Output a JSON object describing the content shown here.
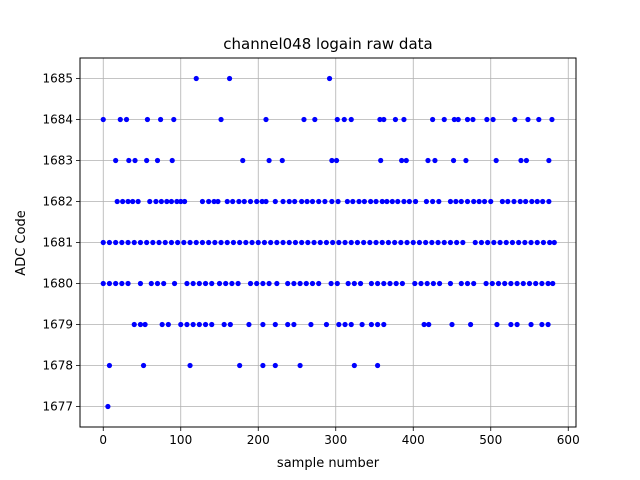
{
  "chart_data": {
    "type": "scatter",
    "title": "channel048 logain raw data",
    "xlabel": "sample number",
    "ylabel": "ADC Code",
    "xlim": [
      -30,
      610
    ],
    "ylim": [
      1676.5,
      1685.5
    ],
    "xticks": [
      0,
      100,
      200,
      300,
      400,
      500,
      600
    ],
    "yticks": [
      1677,
      1678,
      1679,
      1680,
      1681,
      1682,
      1683,
      1684,
      1685
    ],
    "grid": true,
    "marker_color": "#0000ff",
    "series": [
      {
        "points": [
          [
            0,
            1684
          ],
          [
            22,
            1684
          ],
          [
            30,
            1684
          ],
          [
            57,
            1684
          ],
          [
            74,
            1684
          ],
          [
            91,
            1684
          ],
          [
            152,
            1684
          ],
          [
            210,
            1684
          ],
          [
            259,
            1684
          ],
          [
            273,
            1684
          ],
          [
            302,
            1684
          ],
          [
            311,
            1684
          ],
          [
            320,
            1684
          ],
          [
            357,
            1684
          ],
          [
            362,
            1684
          ],
          [
            377,
            1684
          ],
          [
            388,
            1684
          ],
          [
            425,
            1684
          ],
          [
            440,
            1684
          ],
          [
            453,
            1684
          ],
          [
            458,
            1684
          ],
          [
            470,
            1684
          ],
          [
            477,
            1684
          ],
          [
            495,
            1684
          ],
          [
            503,
            1684
          ],
          [
            531,
            1684
          ],
          [
            548,
            1684
          ],
          [
            562,
            1684
          ],
          [
            579,
            1684
          ],
          [
            120,
            1685
          ],
          [
            163,
            1685
          ],
          [
            292,
            1685
          ],
          [
            16,
            1683
          ],
          [
            33,
            1683
          ],
          [
            41,
            1683
          ],
          [
            56,
            1683
          ],
          [
            70,
            1683
          ],
          [
            89,
            1683
          ],
          [
            180,
            1683
          ],
          [
            214,
            1683
          ],
          [
            231,
            1683
          ],
          [
            295,
            1683
          ],
          [
            301,
            1683
          ],
          [
            358,
            1683
          ],
          [
            385,
            1683
          ],
          [
            391,
            1683
          ],
          [
            419,
            1683
          ],
          [
            428,
            1683
          ],
          [
            452,
            1683
          ],
          [
            468,
            1683
          ],
          [
            507,
            1683
          ],
          [
            539,
            1683
          ],
          [
            546,
            1683
          ],
          [
            575,
            1683
          ],
          [
            18,
            1682
          ],
          [
            25,
            1682
          ],
          [
            32,
            1682
          ],
          [
            38,
            1682
          ],
          [
            45,
            1682
          ],
          [
            60,
            1682
          ],
          [
            68,
            1682
          ],
          [
            75,
            1682
          ],
          [
            82,
            1682
          ],
          [
            88,
            1682
          ],
          [
            95,
            1682
          ],
          [
            100,
            1682
          ],
          [
            105,
            1682
          ],
          [
            128,
            1682
          ],
          [
            136,
            1682
          ],
          [
            143,
            1682
          ],
          [
            148,
            1682
          ],
          [
            160,
            1682
          ],
          [
            167,
            1682
          ],
          [
            175,
            1682
          ],
          [
            182,
            1682
          ],
          [
            190,
            1682
          ],
          [
            198,
            1682
          ],
          [
            205,
            1682
          ],
          [
            210,
            1682
          ],
          [
            222,
            1682
          ],
          [
            232,
            1682
          ],
          [
            240,
            1682
          ],
          [
            247,
            1682
          ],
          [
            256,
            1682
          ],
          [
            263,
            1682
          ],
          [
            270,
            1682
          ],
          [
            278,
            1682
          ],
          [
            286,
            1682
          ],
          [
            295,
            1682
          ],
          [
            303,
            1682
          ],
          [
            315,
            1682
          ],
          [
            322,
            1682
          ],
          [
            330,
            1682
          ],
          [
            337,
            1682
          ],
          [
            345,
            1682
          ],
          [
            352,
            1682
          ],
          [
            360,
            1682
          ],
          [
            366,
            1682
          ],
          [
            373,
            1682
          ],
          [
            380,
            1682
          ],
          [
            388,
            1682
          ],
          [
            395,
            1682
          ],
          [
            403,
            1682
          ],
          [
            417,
            1682
          ],
          [
            425,
            1682
          ],
          [
            433,
            1682
          ],
          [
            448,
            1682
          ],
          [
            455,
            1682
          ],
          [
            462,
            1682
          ],
          [
            470,
            1682
          ],
          [
            478,
            1682
          ],
          [
            485,
            1682
          ],
          [
            492,
            1682
          ],
          [
            500,
            1682
          ],
          [
            515,
            1682
          ],
          [
            522,
            1682
          ],
          [
            530,
            1682
          ],
          [
            538,
            1682
          ],
          [
            545,
            1682
          ],
          [
            553,
            1682
          ],
          [
            560,
            1682
          ],
          [
            567,
            1682
          ],
          [
            575,
            1682
          ],
          [
            0,
            1681
          ],
          [
            8,
            1681
          ],
          [
            16,
            1681
          ],
          [
            24,
            1681
          ],
          [
            32,
            1681
          ],
          [
            40,
            1681
          ],
          [
            48,
            1681
          ],
          [
            56,
            1681
          ],
          [
            64,
            1681
          ],
          [
            72,
            1681
          ],
          [
            80,
            1681
          ],
          [
            88,
            1681
          ],
          [
            96,
            1681
          ],
          [
            104,
            1681
          ],
          [
            112,
            1681
          ],
          [
            120,
            1681
          ],
          [
            128,
            1681
          ],
          [
            136,
            1681
          ],
          [
            144,
            1681
          ],
          [
            152,
            1681
          ],
          [
            160,
            1681
          ],
          [
            168,
            1681
          ],
          [
            176,
            1681
          ],
          [
            184,
            1681
          ],
          [
            192,
            1681
          ],
          [
            200,
            1681
          ],
          [
            208,
            1681
          ],
          [
            216,
            1681
          ],
          [
            224,
            1681
          ],
          [
            232,
            1681
          ],
          [
            240,
            1681
          ],
          [
            248,
            1681
          ],
          [
            256,
            1681
          ],
          [
            264,
            1681
          ],
          [
            272,
            1681
          ],
          [
            280,
            1681
          ],
          [
            288,
            1681
          ],
          [
            296,
            1681
          ],
          [
            304,
            1681
          ],
          [
            312,
            1681
          ],
          [
            320,
            1681
          ],
          [
            328,
            1681
          ],
          [
            336,
            1681
          ],
          [
            344,
            1681
          ],
          [
            352,
            1681
          ],
          [
            360,
            1681
          ],
          [
            368,
            1681
          ],
          [
            376,
            1681
          ],
          [
            384,
            1681
          ],
          [
            392,
            1681
          ],
          [
            400,
            1681
          ],
          [
            408,
            1681
          ],
          [
            416,
            1681
          ],
          [
            424,
            1681
          ],
          [
            432,
            1681
          ],
          [
            440,
            1681
          ],
          [
            448,
            1681
          ],
          [
            456,
            1681
          ],
          [
            464,
            1681
          ],
          [
            480,
            1681
          ],
          [
            488,
            1681
          ],
          [
            496,
            1681
          ],
          [
            504,
            1681
          ],
          [
            512,
            1681
          ],
          [
            520,
            1681
          ],
          [
            528,
            1681
          ],
          [
            536,
            1681
          ],
          [
            544,
            1681
          ],
          [
            552,
            1681
          ],
          [
            560,
            1681
          ],
          [
            568,
            1681
          ],
          [
            576,
            1681
          ],
          [
            582,
            1681
          ],
          [
            0,
            1680
          ],
          [
            8,
            1680
          ],
          [
            16,
            1680
          ],
          [
            24,
            1680
          ],
          [
            32,
            1680
          ],
          [
            48,
            1680
          ],
          [
            62,
            1680
          ],
          [
            70,
            1680
          ],
          [
            78,
            1680
          ],
          [
            92,
            1680
          ],
          [
            108,
            1680
          ],
          [
            116,
            1680
          ],
          [
            124,
            1680
          ],
          [
            132,
            1680
          ],
          [
            140,
            1680
          ],
          [
            150,
            1680
          ],
          [
            158,
            1680
          ],
          [
            166,
            1680
          ],
          [
            174,
            1680
          ],
          [
            190,
            1680
          ],
          [
            198,
            1680
          ],
          [
            206,
            1680
          ],
          [
            214,
            1680
          ],
          [
            224,
            1680
          ],
          [
            238,
            1680
          ],
          [
            246,
            1680
          ],
          [
            254,
            1680
          ],
          [
            262,
            1680
          ],
          [
            270,
            1680
          ],
          [
            278,
            1680
          ],
          [
            294,
            1680
          ],
          [
            302,
            1680
          ],
          [
            316,
            1680
          ],
          [
            324,
            1680
          ],
          [
            332,
            1680
          ],
          [
            346,
            1680
          ],
          [
            354,
            1680
          ],
          [
            362,
            1680
          ],
          [
            370,
            1680
          ],
          [
            378,
            1680
          ],
          [
            386,
            1680
          ],
          [
            402,
            1680
          ],
          [
            410,
            1680
          ],
          [
            418,
            1680
          ],
          [
            426,
            1680
          ],
          [
            434,
            1680
          ],
          [
            448,
            1680
          ],
          [
            462,
            1680
          ],
          [
            470,
            1680
          ],
          [
            478,
            1680
          ],
          [
            494,
            1680
          ],
          [
            502,
            1680
          ],
          [
            510,
            1680
          ],
          [
            518,
            1680
          ],
          [
            526,
            1680
          ],
          [
            534,
            1680
          ],
          [
            542,
            1680
          ],
          [
            550,
            1680
          ],
          [
            558,
            1680
          ],
          [
            566,
            1680
          ],
          [
            574,
            1680
          ],
          [
            580,
            1680
          ],
          [
            40,
            1679
          ],
          [
            48,
            1679
          ],
          [
            54,
            1679
          ],
          [
            76,
            1679
          ],
          [
            84,
            1679
          ],
          [
            100,
            1679
          ],
          [
            108,
            1679
          ],
          [
            116,
            1679
          ],
          [
            124,
            1679
          ],
          [
            132,
            1679
          ],
          [
            140,
            1679
          ],
          [
            156,
            1679
          ],
          [
            164,
            1679
          ],
          [
            188,
            1679
          ],
          [
            206,
            1679
          ],
          [
            222,
            1679
          ],
          [
            238,
            1679
          ],
          [
            246,
            1679
          ],
          [
            268,
            1679
          ],
          [
            288,
            1679
          ],
          [
            304,
            1679
          ],
          [
            312,
            1679
          ],
          [
            320,
            1679
          ],
          [
            334,
            1679
          ],
          [
            346,
            1679
          ],
          [
            354,
            1679
          ],
          [
            362,
            1679
          ],
          [
            414,
            1679
          ],
          [
            420,
            1679
          ],
          [
            450,
            1679
          ],
          [
            474,
            1679
          ],
          [
            508,
            1679
          ],
          [
            526,
            1679
          ],
          [
            534,
            1679
          ],
          [
            552,
            1679
          ],
          [
            566,
            1679
          ],
          [
            574,
            1679
          ],
          [
            8,
            1678
          ],
          [
            52,
            1678
          ],
          [
            112,
            1678
          ],
          [
            176,
            1678
          ],
          [
            206,
            1678
          ],
          [
            222,
            1678
          ],
          [
            254,
            1678
          ],
          [
            324,
            1678
          ],
          [
            354,
            1678
          ],
          [
            6,
            1677
          ]
        ]
      }
    ]
  }
}
